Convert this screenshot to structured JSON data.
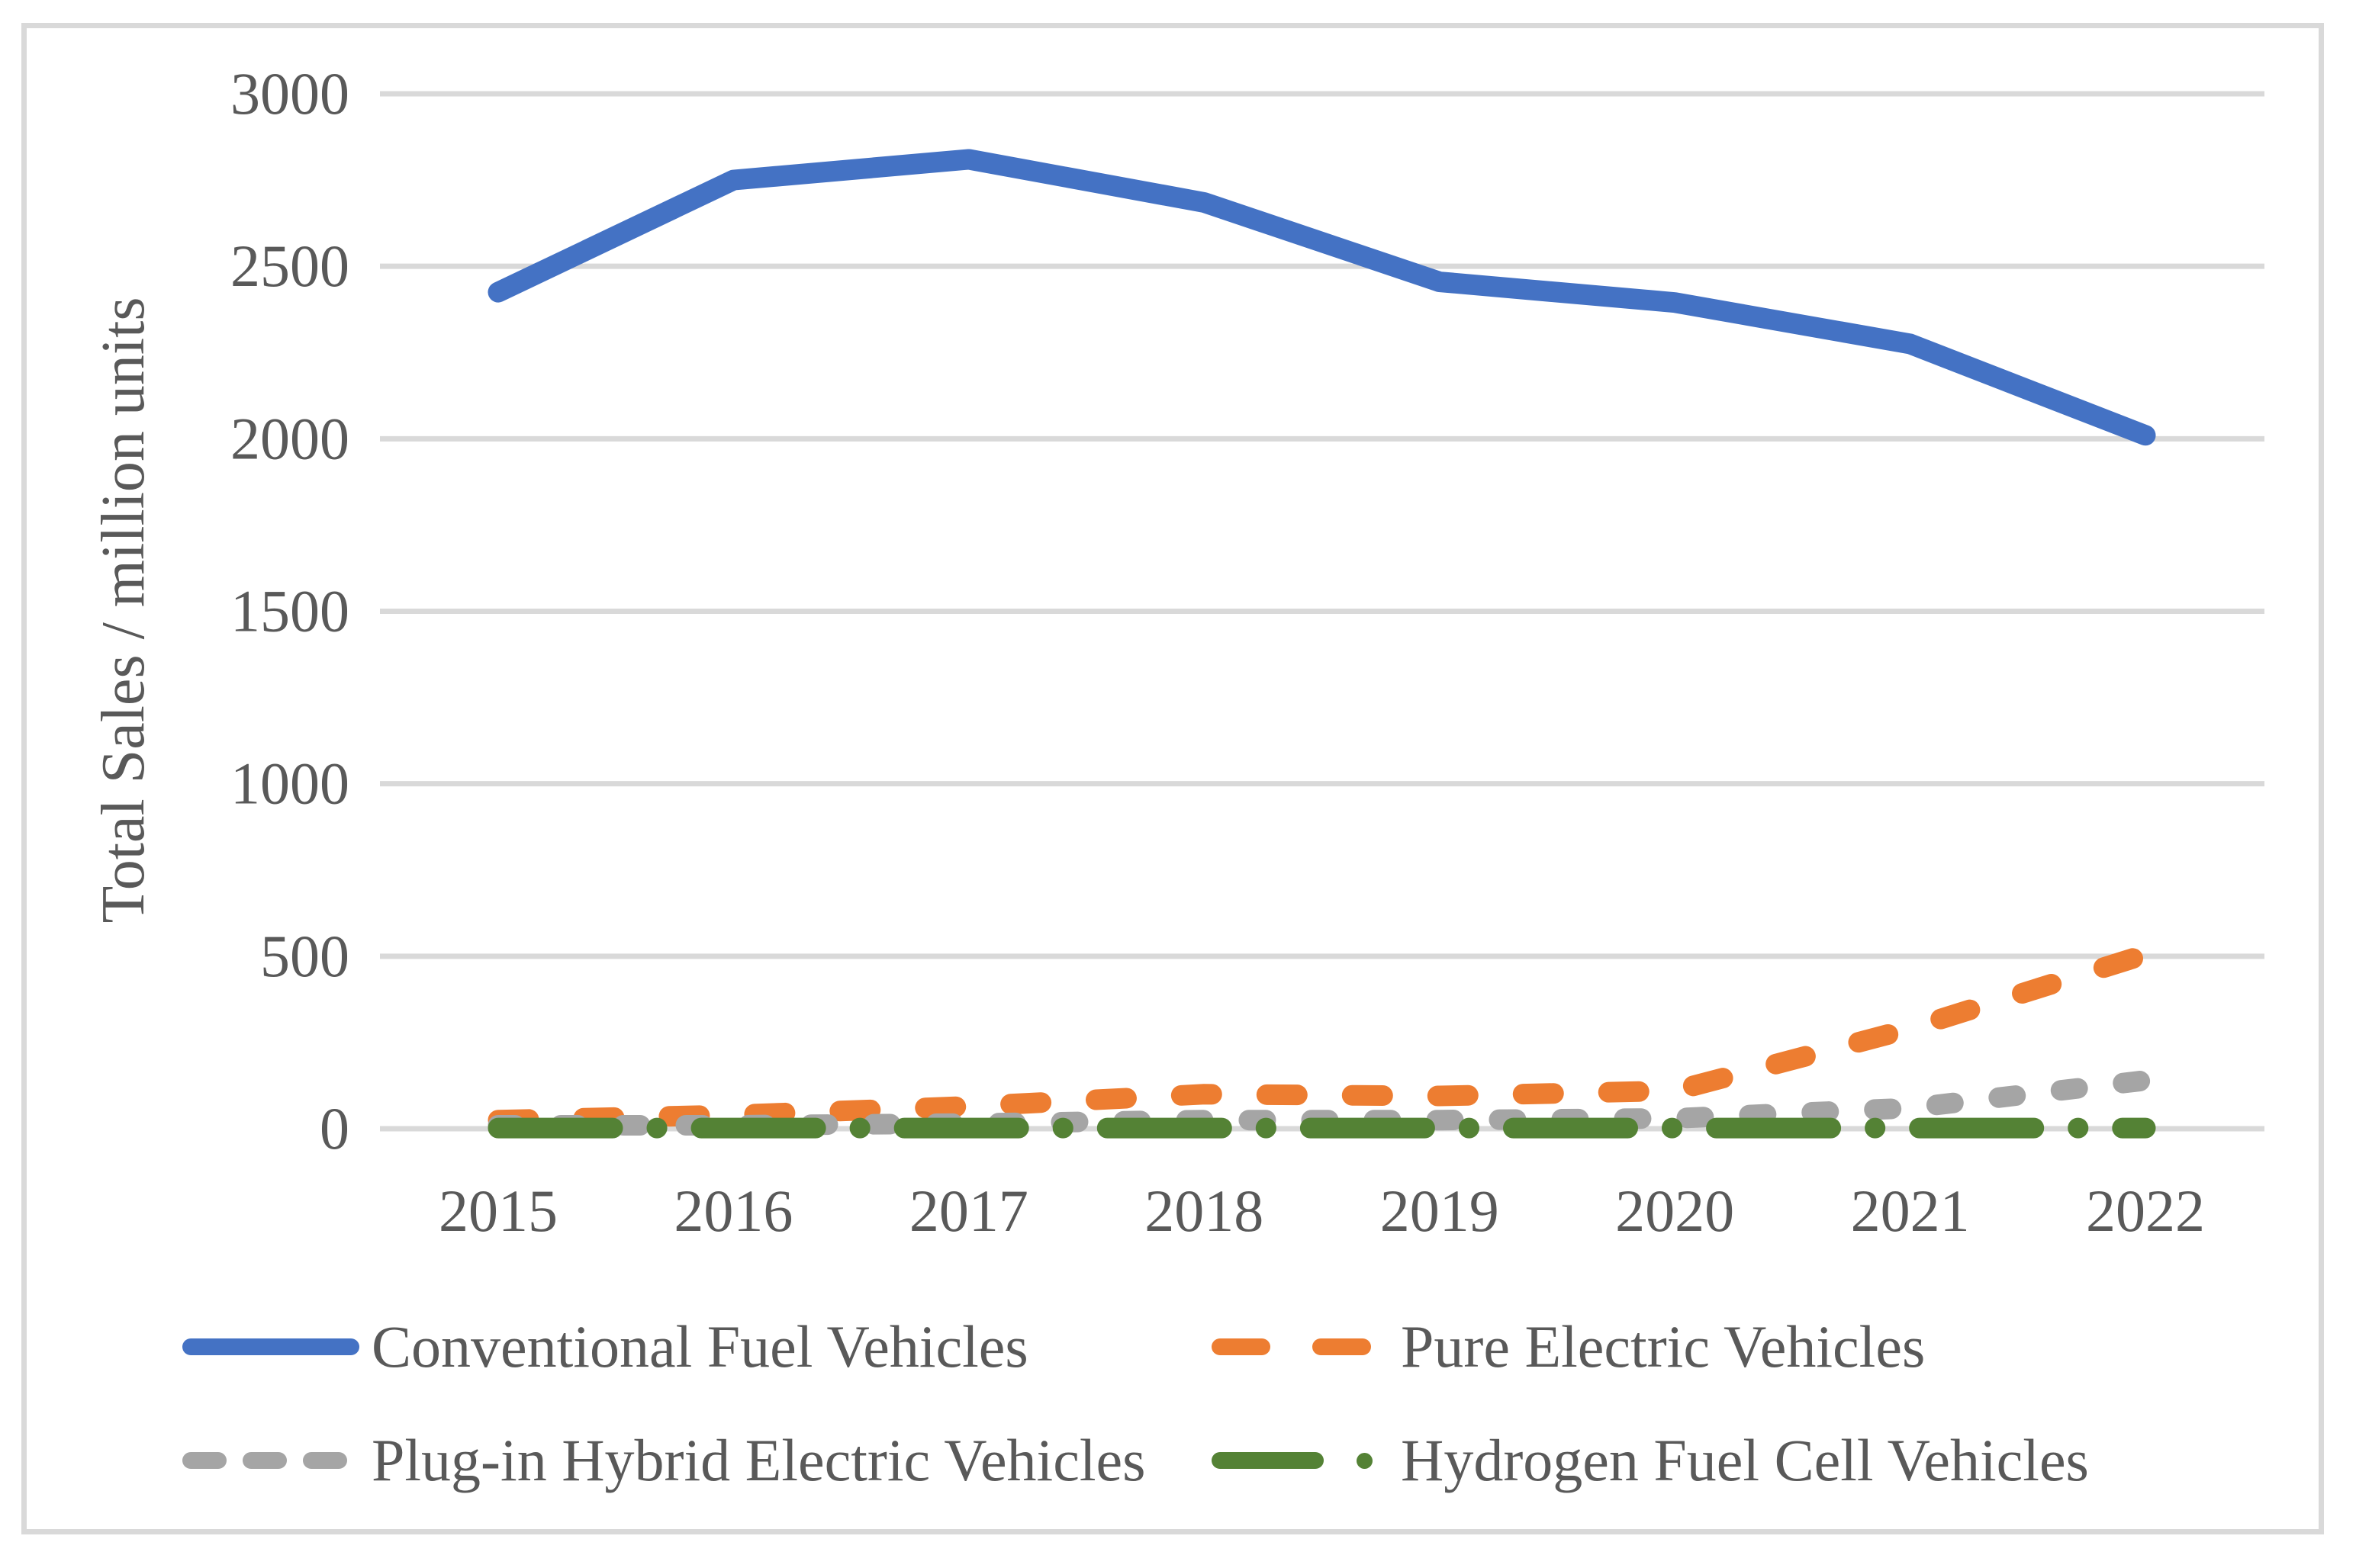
{
  "figure": {
    "background": "#FFFFFF",
    "border_color": "#D9D9D9"
  },
  "chart_data": {
    "type": "line",
    "title": "",
    "xlabel": "",
    "ylabel": "Total Sales / million units",
    "x": [
      "2015",
      "2016",
      "2017",
      "2018",
      "2019",
      "2020",
      "2021",
      "2022"
    ],
    "ylim": [
      0,
      3000
    ],
    "yticks": [
      0,
      500,
      1000,
      1500,
      2000,
      2500,
      3000
    ],
    "grid": "horizontal",
    "grid_color": "#D9D9D9",
    "tick_label_color": "#595959",
    "legend_position": "bottom",
    "series": [
      {
        "name": "Conventional Fuel Vehicles",
        "color": "#4472C4",
        "line_style": "solid",
        "values": [
          2425,
          2750,
          2810,
          2685,
          2455,
          2395,
          2275,
          2010
        ]
      },
      {
        "name": "Pure Electric Vehicles",
        "color": "#ED7D31",
        "line_style": "dashed",
        "values": [
          25,
          40,
          65,
          100,
          95,
          110,
          290,
          505
        ]
      },
      {
        "name": "Plug-in Hybrid Electric Vehicles",
        "color": "#A5A5A5",
        "line_style": "short-dashed",
        "values": [
          10,
          10,
          15,
          25,
          25,
          30,
          60,
          140
        ]
      },
      {
        "name": "Hydrogen Fuel Cell Vehicles",
        "color": "#548235",
        "line_style": "long-dash-dot",
        "values": [
          2,
          2,
          2,
          2,
          2,
          2,
          2,
          2
        ]
      }
    ]
  }
}
